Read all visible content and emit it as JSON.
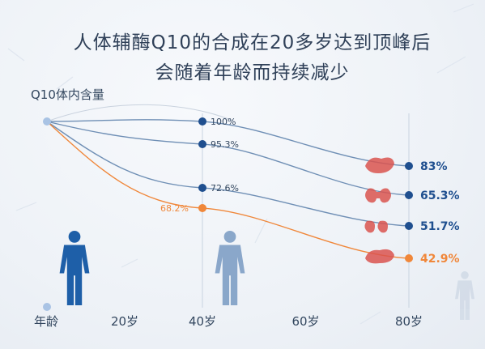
{
  "title_line1": "人体辅酶Q10的合成在20多岁达到顶峰后",
  "title_line2": "会随着年龄而持续减少",
  "colors": {
    "title": "#2f4058",
    "series_blue": "#6f8fb5",
    "series_orange": "#f0873a",
    "marker_dark": "#1f4f8f",
    "axis_text": "#33475f",
    "body_figure": "#1e5fa8",
    "organ_red": "#d9534f"
  },
  "chart_data": {
    "type": "line",
    "ylabel": "Q10体内含量",
    "xlabel": "年龄",
    "x_ticks": [
      "20岁",
      "40岁",
      "60岁",
      "80岁"
    ],
    "x_positions_years": [
      20,
      40,
      60,
      80
    ],
    "xlim": [
      0,
      80
    ],
    "ylim": [
      0,
      100
    ],
    "series": [
      {
        "organ": "heart",
        "values": [
          {
            "x": 0,
            "y": 100
          },
          {
            "x": 40,
            "y": 100
          },
          {
            "x": 80,
            "y": 83
          }
        ],
        "end_label": "83%",
        "mid_label": "100%",
        "icon": "heart-icon"
      },
      {
        "organ": "liver",
        "values": [
          {
            "x": 0,
            "y": 100
          },
          {
            "x": 40,
            "y": 95.3
          },
          {
            "x": 80,
            "y": 65.3
          }
        ],
        "end_label": "65.3%",
        "mid_label": "95.3%",
        "icon": "liver-icon"
      },
      {
        "organ": "lungs",
        "values": [
          {
            "x": 0,
            "y": 100
          },
          {
            "x": 40,
            "y": 72.6
          },
          {
            "x": 80,
            "y": 51.7
          }
        ],
        "end_label": "51.7%",
        "mid_label": "72.6%",
        "icon": "lungs-icon"
      },
      {
        "organ": "kidney",
        "values": [
          {
            "x": 0,
            "y": 100
          },
          {
            "x": 40,
            "y": 68.2
          },
          {
            "x": 80,
            "y": 42.9
          }
        ],
        "end_label": "42.9%",
        "mid_label": "68.2%",
        "icon": "kidney-icon",
        "highlight": true
      }
    ]
  }
}
